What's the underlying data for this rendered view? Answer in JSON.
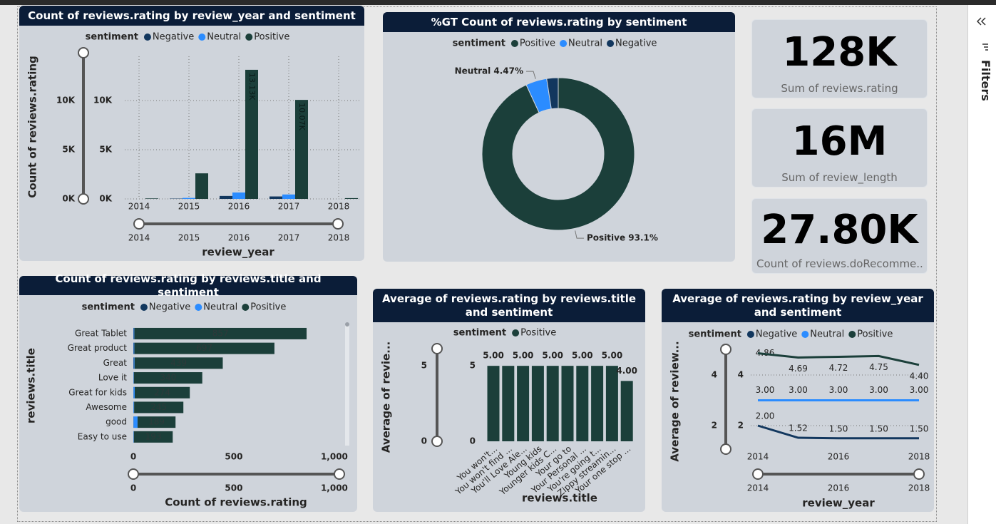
{
  "chart_data": [
    {
      "type": "bar",
      "title": "Count of reviews.rating by review_year and sentiment",
      "legend_title": "sentiment",
      "categories": [
        "2014",
        "2015",
        "2016",
        "2017",
        "2018"
      ],
      "series": [
        {
          "name": "Negative",
          "color": "#12375e",
          "values": [
            0,
            30,
            300,
            250,
            0
          ]
        },
        {
          "name": "Neutral",
          "color": "#2b8cff",
          "values": [
            0,
            100,
            650,
            450,
            0
          ]
        },
        {
          "name": "Positive",
          "color": "#1b3f3a",
          "values": [
            50,
            2600,
            13130,
            10070,
            80
          ],
          "value_labels": [
            null,
            null,
            "13.13K",
            "10.07K",
            null
          ]
        }
      ],
      "xlabel": "review_year",
      "ylabel": "Count of reviews.rating",
      "ylim": [
        0,
        14500
      ],
      "yticks": [
        {
          "value": 0,
          "label": "0K"
        },
        {
          "value": 5000,
          "label": "5K"
        },
        {
          "value": 10000,
          "label": "10K"
        }
      ],
      "grid": true
    },
    {
      "type": "pie",
      "donut": true,
      "title": "%GT Count of reviews.rating by sentiment",
      "legend_title": "sentiment",
      "categories": [
        "Positive",
        "Neutral",
        "Negative"
      ],
      "values": [
        93.1,
        4.47,
        2.43
      ],
      "value_labels": [
        "Positive 93.1%",
        "Neutral 4.47%",
        null
      ],
      "colors": [
        "#1b3f3a",
        "#2b8cff",
        "#12375e"
      ]
    },
    {
      "type": "bar",
      "orientation": "horizontal",
      "stacked": true,
      "title": "Count of reviews.rating by reviews.title and sentiment",
      "legend_title": "sentiment",
      "categories": [
        "Great Tablet",
        "Great product",
        "Great",
        "Love it",
        "Great for kids",
        "Awesome",
        "good",
        "Easy to use"
      ],
      "series": [
        {
          "name": "Negative",
          "color": "#12375e",
          "values": [
            2,
            2,
            2,
            1,
            1,
            1,
            1,
            1
          ]
        },
        {
          "name": "Neutral",
          "color": "#2b8cff",
          "values": [
            3,
            3,
            4,
            2,
            6,
            3,
            20,
            2
          ]
        },
        {
          "name": "Positive",
          "color": "#1b3f3a",
          "values": [
            857,
            697,
            439,
            340,
            274,
            245,
            189,
            193
          ],
          "data_labels": true
        }
      ],
      "xlabel": "Count of reviews.rating",
      "ylabel": "reviews.title",
      "xlim": [
        0,
        1057
      ],
      "xticks": [
        0,
        500,
        {
          "value": 1000,
          "label": "1,000"
        }
      ]
    },
    {
      "type": "bar",
      "title": "Average of reviews.rating by reviews.title and sentiment",
      "legend_title": "sentiment",
      "categories": [
        "You won't...",
        "You won't find ...",
        "You'll Love Ale...",
        "Young kids",
        "Younger kids C...",
        "Your go to",
        "Your Personal ...",
        "You're going t...",
        "Zippy streamin...",
        "Your one stop ..."
      ],
      "series": [
        {
          "name": "Positive",
          "color": "#1b3f3a",
          "values": [
            5,
            5,
            5,
            5,
            5,
            5,
            5,
            5,
            5,
            4
          ],
          "value_labels": [
            "5.00",
            null,
            "5.00",
            null,
            "5.00",
            null,
            "5.00",
            null,
            "5.00",
            "4.00"
          ]
        }
      ],
      "xlabel": "reviews.title",
      "ylabel": "Average of revie...",
      "ylim": [
        0,
        6
      ],
      "yticks": [
        0,
        5
      ]
    },
    {
      "type": "line",
      "title": "Average of reviews.rating by review_year and sentiment",
      "legend_title": "sentiment",
      "x": [
        2014,
        2015,
        2016,
        2017,
        2018
      ],
      "series": [
        {
          "name": "Negative",
          "color": "#12375e",
          "values": [
            2.0,
            1.52,
            1.5,
            1.5,
            1.5
          ],
          "value_labels": [
            "2.00",
            "1.52",
            "1.50",
            "1.50",
            "1.50"
          ]
        },
        {
          "name": "Neutral",
          "color": "#2b8cff",
          "values": [
            3,
            3,
            3,
            3,
            3
          ],
          "value_labels": [
            "3.00",
            "3.00",
            "3.00",
            "3.00",
            "3.00"
          ]
        },
        {
          "name": "Positive",
          "color": "#1b3f3a",
          "values": [
            4.86,
            4.69,
            4.72,
            4.75,
            4.4
          ],
          "value_labels": [
            "4.86",
            "4.69",
            "4.72",
            "4.75",
            "4.40"
          ]
        }
      ],
      "xlabel": "review_year",
      "ylabel": "Average of review...",
      "xlim": [
        2014,
        2018
      ],
      "xticks": [
        2014,
        2016,
        2018
      ],
      "ylim": [
        1.4,
        5
      ],
      "yticks": [
        2,
        4
      ],
      "grid": true
    }
  ],
  "cards": [
    {
      "value": "128K",
      "label": "Sum of reviews.rating"
    },
    {
      "value": "16M",
      "label": "Sum of review_length"
    },
    {
      "value": "27.80K",
      "label": "Count of reviews.doRecomme..."
    }
  ],
  "filters_pane": {
    "title": "Filters"
  }
}
